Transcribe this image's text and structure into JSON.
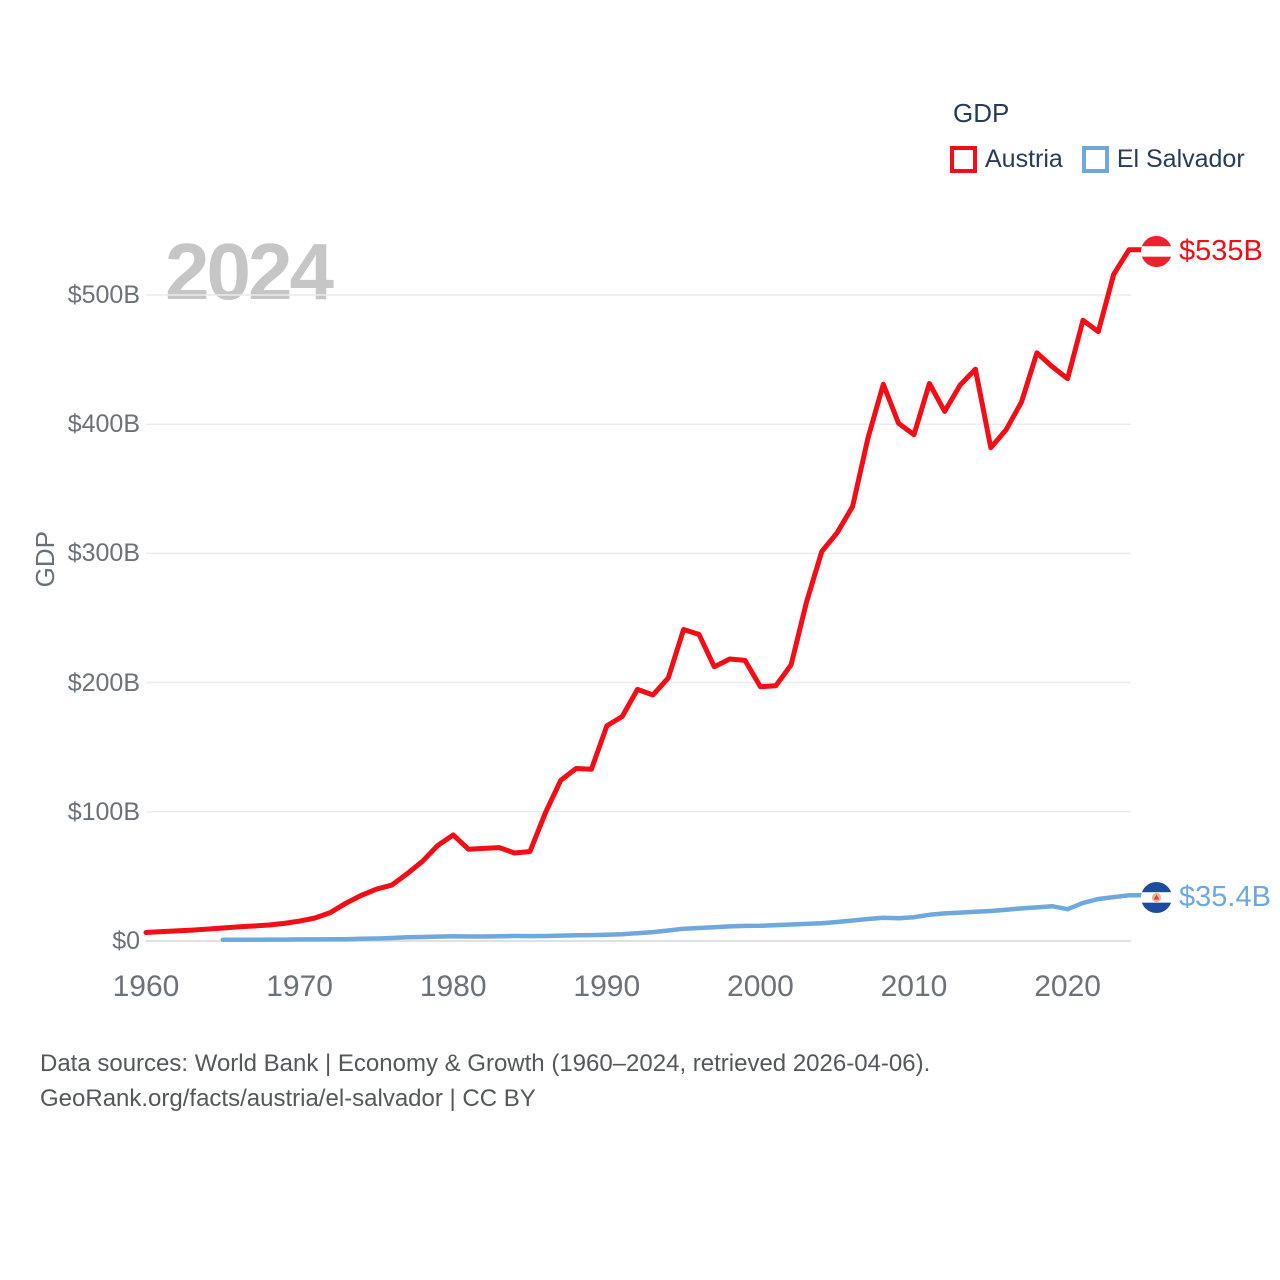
{
  "chart_data": {
    "type": "line",
    "legend_title": "GDP",
    "ylabel": "GDP",
    "xlabel": "",
    "watermark": "2024",
    "grid": true,
    "legend_position": "top-right",
    "x_range": [
      1960,
      2024
    ],
    "ylim": [
      0,
      550
    ],
    "yticks": {
      "values": [
        0,
        100,
        200,
        300,
        400,
        500
      ],
      "labels": [
        "$0",
        "$100B",
        "$200B",
        "$300B",
        "$400B",
        "$500B"
      ]
    },
    "xticks": {
      "values": [
        1960,
        1970,
        1980,
        1990,
        2000,
        2010,
        2020
      ],
      "labels": [
        "1960",
        "1970",
        "1980",
        "1990",
        "2000",
        "2010",
        "2020"
      ]
    },
    "end_labels": {
      "austria": "$535B",
      "el_salvador": "$35.4B"
    },
    "series": [
      {
        "name": "Austria",
        "color": "#f20d17",
        "flag_colors": [
          "#ee2030",
          "#ffffff",
          "#ee2030"
        ],
        "start_year": 1960,
        "end_year": 2024,
        "unit": "billion USD",
        "values": [
          6.6,
          7.3,
          7.8,
          8.4,
          9.2,
          10.1,
          10.9,
          11.6,
          12.4,
          13.6,
          15.4,
          17.8,
          22.0,
          29.2,
          35.2,
          40.1,
          43.3,
          52.0,
          61.7,
          74.0,
          82.1,
          71.0,
          71.7,
          72.3,
          68.1,
          69.3,
          99.2,
          124.3,
          133.5,
          132.9,
          166.5,
          173.8,
          194.7,
          190.4,
          203.5,
          241.1,
          237.3,
          212.2,
          218.3,
          217.2,
          196.8,
          197.5,
          213.7,
          262.3,
          301.5,
          316.0,
          336.3,
          389.1,
          430.9,
          400.6,
          391.9,
          431.5,
          409.9,
          430.3,
          442.6,
          381.8,
          395.8,
          417.2,
          455.2,
          444.6,
          435.2,
          480.4,
          471.7,
          516.0,
          535.0
        ]
      },
      {
        "name": "El Salvador",
        "color": "#6fa8dc",
        "flag_colors": [
          "#1d4ba0",
          "#ffffff",
          "#1d4ba0"
        ],
        "start_year": 1965,
        "end_year": 2024,
        "unit": "billion USD",
        "values": [
          0.9,
          1.0,
          1.0,
          1.1,
          1.1,
          1.2,
          1.2,
          1.3,
          1.4,
          1.7,
          1.9,
          2.3,
          2.9,
          3.1,
          3.4,
          3.6,
          3.5,
          3.5,
          3.7,
          3.9,
          3.8,
          3.9,
          4.2,
          4.5,
          4.6,
          4.8,
          5.3,
          6.0,
          6.9,
          8.1,
          9.5,
          10.1,
          10.7,
          11.3,
          11.7,
          11.8,
          12.3,
          12.8,
          13.2,
          13.7,
          14.7,
          15.9,
          17.0,
          18.0,
          17.6,
          18.4,
          20.3,
          21.4,
          22.0,
          22.6,
          23.2,
          24.2,
          25.2,
          26.0,
          26.9,
          24.6,
          29.5,
          32.5,
          34.0,
          35.4
        ]
      }
    ]
  },
  "footer": {
    "line1": "Data sources: World Bank | Economy & Growth (1960–2024, retrieved 2026-04-06).",
    "line2": "GeoRank.org/facts/austria/el-salvador | CC BY"
  }
}
